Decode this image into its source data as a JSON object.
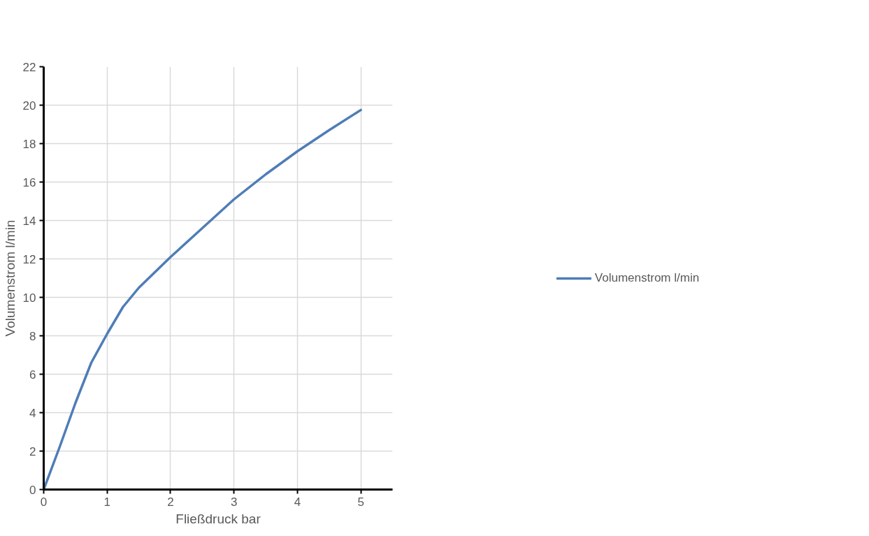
{
  "chart_data": {
    "type": "line",
    "xlabel": "Fließdruck bar",
    "ylabel": "Volumenstrom l/min",
    "x": [
      0,
      0.25,
      0.5,
      0.75,
      1,
      1.25,
      1.5,
      2,
      2.5,
      3,
      3.5,
      4,
      4.5,
      5
    ],
    "series": [
      {
        "name": "Volumenstrom l/min",
        "color": "#4f7db6",
        "values": [
          0,
          2.2,
          4.5,
          6.6,
          8.1,
          9.5,
          10.5,
          12.1,
          13.6,
          15.1,
          16.4,
          17.6,
          18.7,
          19.75
        ]
      }
    ],
    "xlim": [
      0,
      5.5
    ],
    "xticks": [
      0,
      1,
      2,
      3,
      4,
      5
    ],
    "ylim": [
      0,
      22
    ],
    "yticks": [
      0,
      2,
      4,
      6,
      8,
      10,
      12,
      14,
      16,
      18,
      20,
      22
    ],
    "grid": true,
    "legend": "right",
    "marker": "none",
    "line_style": "solid"
  }
}
